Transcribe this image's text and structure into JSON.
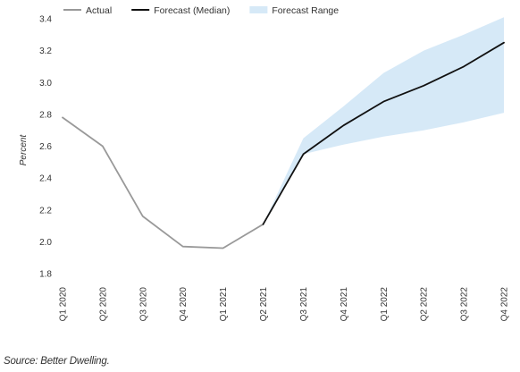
{
  "chart_data": {
    "type": "line",
    "title": "",
    "xlabel": "",
    "ylabel": "Percent",
    "ylim": [
      1.8,
      3.4
    ],
    "yticks": [
      1.8,
      2.0,
      2.2,
      2.4,
      2.6,
      2.8,
      3.0,
      3.2,
      3.4
    ],
    "grid": false,
    "legend_position": "top-left",
    "categories": [
      "Q1 2020",
      "Q2 2020",
      "Q3 2020",
      "Q4 2020",
      "Q1 2021",
      "Q2 2021",
      "Q3 2021",
      "Q4 2021",
      "Q1 2022",
      "Q2 2022",
      "Q3 2022",
      "Q4 2022"
    ],
    "series": [
      {
        "name": "Actual",
        "color": "#999999",
        "values": [
          2.78,
          2.6,
          2.16,
          1.97,
          1.96,
          2.11,
          null,
          null,
          null,
          null,
          null,
          null
        ]
      },
      {
        "name": "Forecast (Median)",
        "color": "#111111",
        "values": [
          null,
          null,
          null,
          null,
          null,
          2.11,
          2.55,
          2.73,
          2.88,
          2.98,
          3.1,
          3.25
        ]
      }
    ],
    "range": {
      "name": "Forecast Range",
      "color": "#d6e9f7",
      "lower": [
        null,
        null,
        null,
        null,
        null,
        2.11,
        2.55,
        2.61,
        2.66,
        2.7,
        2.75,
        2.81
      ],
      "upper": [
        null,
        null,
        null,
        null,
        null,
        2.11,
        2.65,
        2.85,
        3.06,
        3.2,
        3.3,
        3.41
      ]
    }
  },
  "source": "Source: Better Dwelling."
}
